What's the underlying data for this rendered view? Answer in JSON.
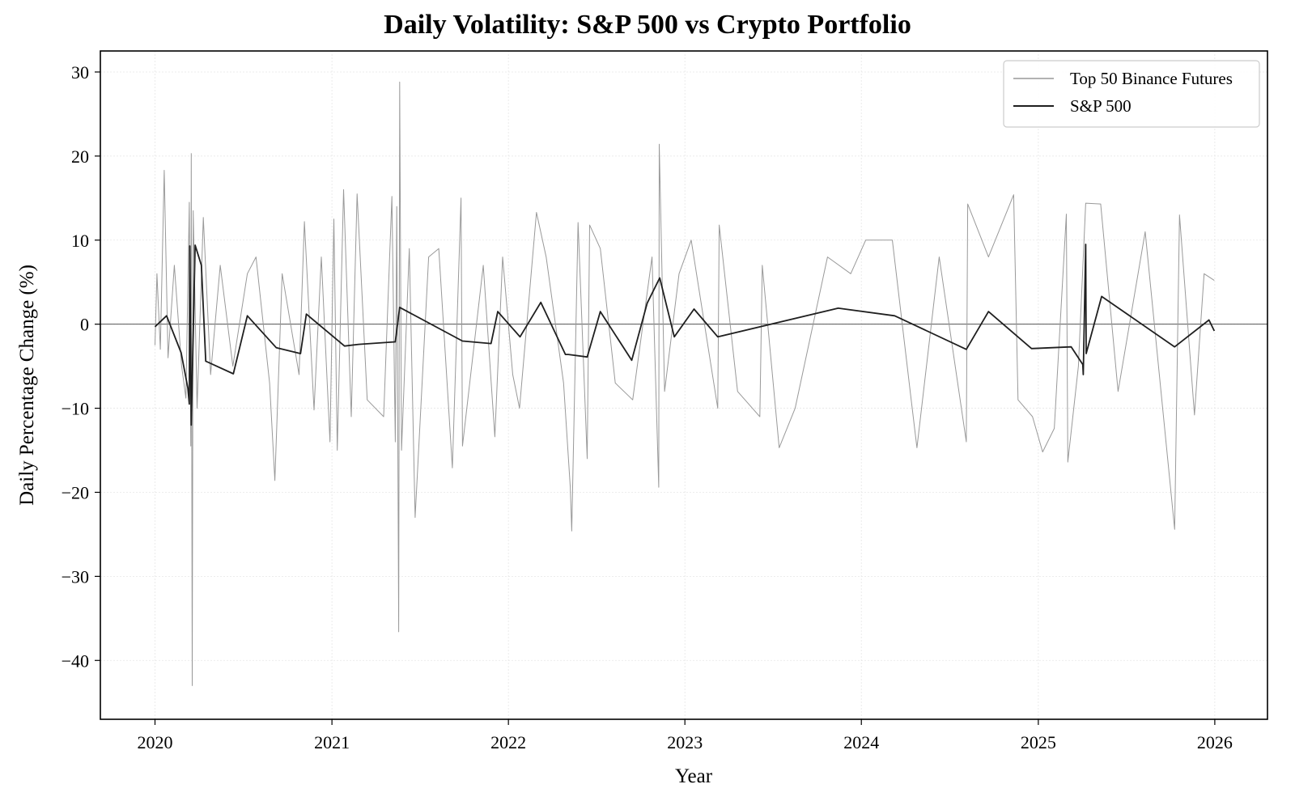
{
  "chart_data": {
    "type": "line",
    "title": "Daily Volatility: S&P 500 vs Crypto Portfolio",
    "xlabel": "Year",
    "ylabel": "Daily Percentage Change (%)",
    "xlim": [
      "2019-09-10",
      "2026-04-20"
    ],
    "ylim": [
      -47,
      32.5
    ],
    "x_ticks": [
      "2020",
      "2021",
      "2022",
      "2023",
      "2024",
      "2025",
      "2026"
    ],
    "y_ticks": [
      30,
      20,
      10,
      0,
      -10,
      -20,
      -30,
      -40
    ],
    "y_tick_labels": [
      "30",
      "20",
      "10",
      "0",
      "−10",
      "−20",
      "−30",
      "−40"
    ],
    "grid": true,
    "zero_line": true,
    "legend_position": "top-right",
    "series": [
      {
        "name": "Top 50 Binance Futures",
        "color": "#999999",
        "points": [
          [
            "2020-01-01",
            -2.5
          ],
          [
            "2020-01-05",
            6.0
          ],
          [
            "2020-01-12",
            -3.0
          ],
          [
            "2020-01-20",
            18.3
          ],
          [
            "2020-01-28",
            -4.0
          ],
          [
            "2020-02-10",
            7.0
          ],
          [
            "2020-02-25",
            -5.0
          ],
          [
            "2020-03-05",
            -8.8
          ],
          [
            "2020-03-12",
            14.5
          ],
          [
            "2020-03-15",
            -14.5
          ],
          [
            "2020-03-16",
            20.3
          ],
          [
            "2020-03-18",
            -43.0
          ],
          [
            "2020-03-20",
            13.5
          ],
          [
            "2020-03-28",
            -10.0
          ],
          [
            "2020-04-10",
            12.7
          ],
          [
            "2020-04-25",
            -6.0
          ],
          [
            "2020-05-15",
            7.0
          ],
          [
            "2020-06-10",
            -5.0
          ],
          [
            "2020-07-10",
            6.0
          ],
          [
            "2020-07-28",
            8.0
          ],
          [
            "2020-08-25",
            -7.0
          ],
          [
            "2020-09-05",
            -18.6
          ],
          [
            "2020-09-20",
            6.0
          ],
          [
            "2020-10-25",
            -6.0
          ],
          [
            "2020-11-05",
            12.2
          ],
          [
            "2020-11-25",
            -10.2
          ],
          [
            "2020-12-10",
            8.0
          ],
          [
            "2020-12-28",
            -14.0
          ],
          [
            "2021-01-05",
            12.5
          ],
          [
            "2021-01-12",
            -15.0
          ],
          [
            "2021-01-25",
            16.0
          ],
          [
            "2021-02-10",
            -11.0
          ],
          [
            "2021-02-22",
            15.5
          ],
          [
            "2021-03-15",
            -9.0
          ],
          [
            "2021-04-18",
            -11.0
          ],
          [
            "2021-05-05",
            15.2
          ],
          [
            "2021-05-12",
            -14.0
          ],
          [
            "2021-05-15",
            14.0
          ],
          [
            "2021-05-19",
            -36.6
          ],
          [
            "2021-05-21",
            28.8
          ],
          [
            "2021-05-25",
            -15.0
          ],
          [
            "2021-06-10",
            9.0
          ],
          [
            "2021-06-22",
            -23.0
          ],
          [
            "2021-07-20",
            8.0
          ],
          [
            "2021-08-10",
            9.0
          ],
          [
            "2021-09-07",
            -17.1
          ],
          [
            "2021-09-25",
            15.0
          ],
          [
            "2021-09-28",
            -14.5
          ],
          [
            "2021-11-10",
            7.0
          ],
          [
            "2021-12-04",
            -13.4
          ],
          [
            "2021-12-20",
            8.0
          ],
          [
            "2022-01-10",
            -6.0
          ],
          [
            "2022-01-24",
            -10.0
          ],
          [
            "2022-02-28",
            13.3
          ],
          [
            "2022-03-20",
            8.0
          ],
          [
            "2022-04-25",
            -7.0
          ],
          [
            "2022-05-09",
            -19.4
          ],
          [
            "2022-05-12",
            -24.6
          ],
          [
            "2022-05-25",
            12.1
          ],
          [
            "2022-06-13",
            -16.0
          ],
          [
            "2022-06-18",
            11.8
          ],
          [
            "2022-07-10",
            9.0
          ],
          [
            "2022-08-10",
            -7.0
          ],
          [
            "2022-09-15",
            -9.0
          ],
          [
            "2022-10-25",
            8.0
          ],
          [
            "2022-11-08",
            -19.4
          ],
          [
            "2022-11-09",
            21.4
          ],
          [
            "2022-11-20",
            -8.0
          ],
          [
            "2022-12-20",
            6.0
          ],
          [
            "2023-01-14",
            10.0
          ],
          [
            "2023-03-10",
            -10.0
          ],
          [
            "2023-03-13",
            11.8
          ],
          [
            "2023-04-20",
            -8.0
          ],
          [
            "2023-06-05",
            -11.0
          ],
          [
            "2023-06-10",
            7.0
          ],
          [
            "2023-07-15",
            -14.7
          ],
          [
            "2023-08-17",
            -10.0
          ],
          [
            "2023-10-23",
            8.0
          ],
          [
            "2023-12-10",
            6.0
          ],
          [
            "2024-01-10",
            10.0
          ],
          [
            "2024-03-05",
            10.0
          ],
          [
            "2024-04-13",
            -9.0
          ],
          [
            "2024-04-25",
            -14.7
          ],
          [
            "2024-06-10",
            8.0
          ],
          [
            "2024-08-05",
            -14.0
          ],
          [
            "2024-08-08",
            14.3
          ],
          [
            "2024-09-20",
            8.0
          ],
          [
            "2024-11-11",
            15.4
          ],
          [
            "2024-11-20",
            -9.0
          ],
          [
            "2024-12-20",
            -11.0
          ],
          [
            "2025-01-10",
            -15.2
          ],
          [
            "2025-02-03",
            -12.4
          ],
          [
            "2025-02-28",
            13.1
          ],
          [
            "2025-03-03",
            -16.4
          ],
          [
            "2025-03-25",
            -5.0
          ],
          [
            "2025-04-09",
            14.4
          ],
          [
            "2025-05-10",
            14.3
          ],
          [
            "2025-06-15",
            -8.0
          ],
          [
            "2025-08-10",
            11.0
          ],
          [
            "2025-10-10",
            -24.4
          ],
          [
            "2025-10-20",
            13.0
          ],
          [
            "2025-11-20",
            -10.8
          ],
          [
            "2025-12-10",
            6.0
          ],
          [
            "2025-12-31",
            5.2
          ]
        ]
      },
      {
        "name": "S&P 500",
        "color": "#1f1f1f",
        "points": [
          [
            "2020-01-01",
            -0.3
          ],
          [
            "2020-01-25",
            1.0
          ],
          [
            "2020-02-24",
            -3.4
          ],
          [
            "2020-03-09",
            -7.6
          ],
          [
            "2020-03-12",
            -9.5
          ],
          [
            "2020-03-13",
            9.3
          ],
          [
            "2020-03-16",
            -12.0
          ],
          [
            "2020-03-24",
            9.4
          ],
          [
            "2020-04-06",
            7.0
          ],
          [
            "2020-04-15",
            -4.4
          ],
          [
            "2020-06-11",
            -5.9
          ],
          [
            "2020-07-10",
            1.0
          ],
          [
            "2020-09-08",
            -2.8
          ],
          [
            "2020-10-28",
            -3.5
          ],
          [
            "2020-11-09",
            1.2
          ],
          [
            "2021-01-27",
            -2.6
          ],
          [
            "2021-02-25",
            -2.4
          ],
          [
            "2021-05-12",
            -2.1
          ],
          [
            "2021-05-21",
            2.0
          ],
          [
            "2021-09-28",
            -2.0
          ],
          [
            "2021-11-26",
            -2.3
          ],
          [
            "2021-12-10",
            1.5
          ],
          [
            "2022-01-25",
            -1.5
          ],
          [
            "2022-03-09",
            2.6
          ],
          [
            "2022-04-29",
            -3.6
          ],
          [
            "2022-05-05",
            -3.6
          ],
          [
            "2022-06-13",
            -3.9
          ],
          [
            "2022-07-10",
            1.5
          ],
          [
            "2022-09-13",
            -4.3
          ],
          [
            "2022-10-15",
            2.5
          ],
          [
            "2022-11-10",
            5.5
          ],
          [
            "2022-12-10",
            -1.5
          ],
          [
            "2023-01-20",
            1.8
          ],
          [
            "2023-03-10",
            -1.5
          ],
          [
            "2023-11-14",
            1.9
          ],
          [
            "2024-03-10",
            1.0
          ],
          [
            "2024-08-05",
            -3.0
          ],
          [
            "2024-09-20",
            1.5
          ],
          [
            "2024-12-18",
            -2.9
          ],
          [
            "2025-03-10",
            -2.7
          ],
          [
            "2025-04-03",
            -4.8
          ],
          [
            "2025-04-04",
            -6.0
          ],
          [
            "2025-04-09",
            9.5
          ],
          [
            "2025-04-10",
            -3.5
          ],
          [
            "2025-05-12",
            3.3
          ],
          [
            "2025-10-10",
            -2.7
          ],
          [
            "2025-12-20",
            0.5
          ],
          [
            "2025-12-31",
            -0.8
          ]
        ]
      }
    ]
  }
}
